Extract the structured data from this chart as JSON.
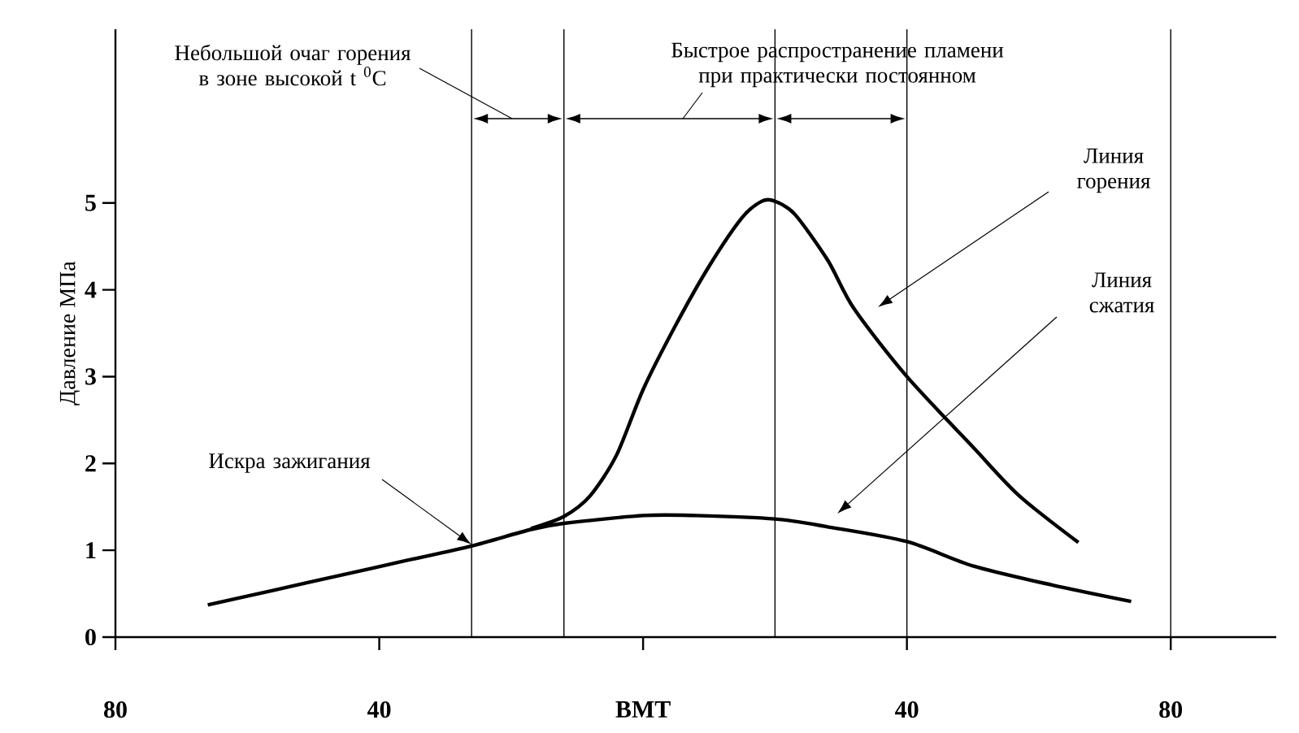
{
  "chart_data": {
    "type": "line",
    "ylabel": "Давление  МПа",
    "xlim": [
      -80,
      96
    ],
    "ylim": [
      0,
      7
    ],
    "xticks": [
      {
        "value": -80,
        "label": "80"
      },
      {
        "value": -40,
        "label": "40"
      },
      {
        "value": 0,
        "label": "BMT"
      },
      {
        "value": 40,
        "label": "40"
      },
      {
        "value": 80,
        "label": "80"
      }
    ],
    "yticks": [
      0,
      1,
      2,
      3,
      4,
      5
    ],
    "series": [
      {
        "color": "#000000",
        "x": [
          -66,
          -56,
          -46,
          -36,
          -26,
          -17,
          -12,
          0,
          8,
          20,
          28,
          40,
          50,
          62,
          74
        ],
        "values": [
          0.37,
          0.54,
          0.71,
          0.88,
          1.05,
          1.24,
          1.31,
          1.4,
          1.4,
          1.36,
          1.27,
          1.1,
          0.82,
          0.6,
          0.41
        ]
      },
      {
        "color": "#000000",
        "x": [
          -17,
          -12,
          -8,
          -4,
          0,
          5,
          10,
          15,
          18,
          20,
          23,
          28,
          32,
          40,
          50,
          57,
          66
        ],
        "values": [
          1.25,
          1.39,
          1.63,
          2.1,
          2.85,
          3.6,
          4.27,
          4.83,
          5.02,
          5.02,
          4.87,
          4.34,
          3.78,
          3.0,
          2.19,
          1.63,
          1.09
        ]
      }
    ],
    "ref_lines": [
      {
        "axis": "x",
        "value": -26
      },
      {
        "axis": "x",
        "value": -12
      },
      {
        "axis": "x",
        "value": 20
      },
      {
        "axis": "x",
        "value": 40
      },
      {
        "axis": "x",
        "value": 80
      }
    ],
    "annotations": [
      "Небольшой очаг горения в зоне высокой t $^{0}$C",
      "Быстрое распространение пламени при практически постоянном",
      "Искра зажигания",
      "Линия горения",
      "Линия сжатия"
    ]
  }
}
